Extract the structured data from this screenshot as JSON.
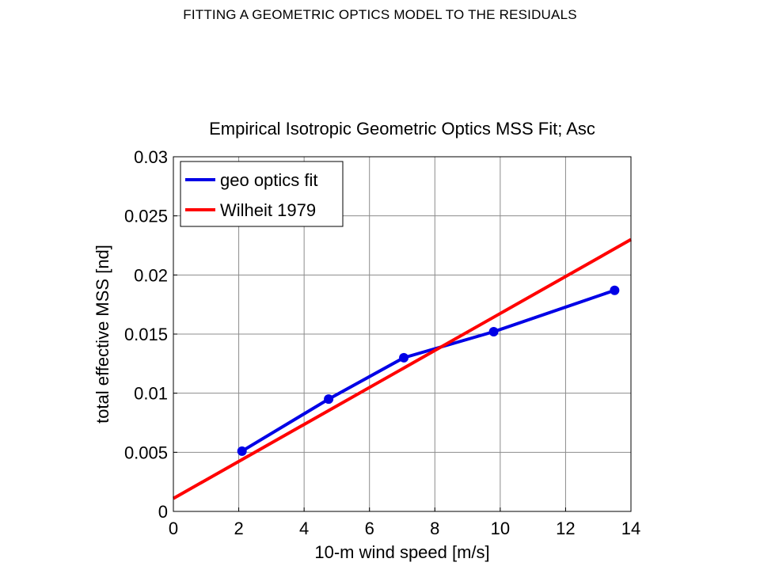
{
  "page": {
    "heading": "FITTING A GEOMETRIC OPTICS MODEL TO THE RESIDUALS"
  },
  "chart_data": {
    "type": "line",
    "title": "Empirical Isotropic Geometric Optics MSS Fit; Asc",
    "xlabel": "10-m wind speed [m/s]",
    "ylabel": "total effective MSS [nd]",
    "xlim": [
      0,
      14
    ],
    "ylim": [
      0,
      0.03
    ],
    "xticks": [
      0,
      2,
      4,
      6,
      8,
      10,
      12,
      14
    ],
    "yticks": [
      0,
      0.005,
      0.01,
      0.015,
      0.02,
      0.025,
      0.03
    ],
    "xtick_labels": [
      "0",
      "2",
      "4",
      "6",
      "8",
      "10",
      "12",
      "14"
    ],
    "ytick_labels": [
      "0",
      "0.005",
      "0.01",
      "0.015",
      "0.02",
      "0.025",
      "0.03"
    ],
    "grid": true,
    "legend_position": "top-left",
    "series": [
      {
        "name": "geo optics fit",
        "color": "#0000e6",
        "markers": true,
        "x": [
          2.1,
          4.75,
          7.05,
          9.8,
          13.5
        ],
        "y": [
          0.0051,
          0.0095,
          0.013,
          0.0152,
          0.0187
        ]
      },
      {
        "name": "Wilheit 1979",
        "color": "#ff0000",
        "markers": false,
        "x": [
          0,
          14
        ],
        "y": [
          0.0011,
          0.023
        ]
      }
    ]
  }
}
